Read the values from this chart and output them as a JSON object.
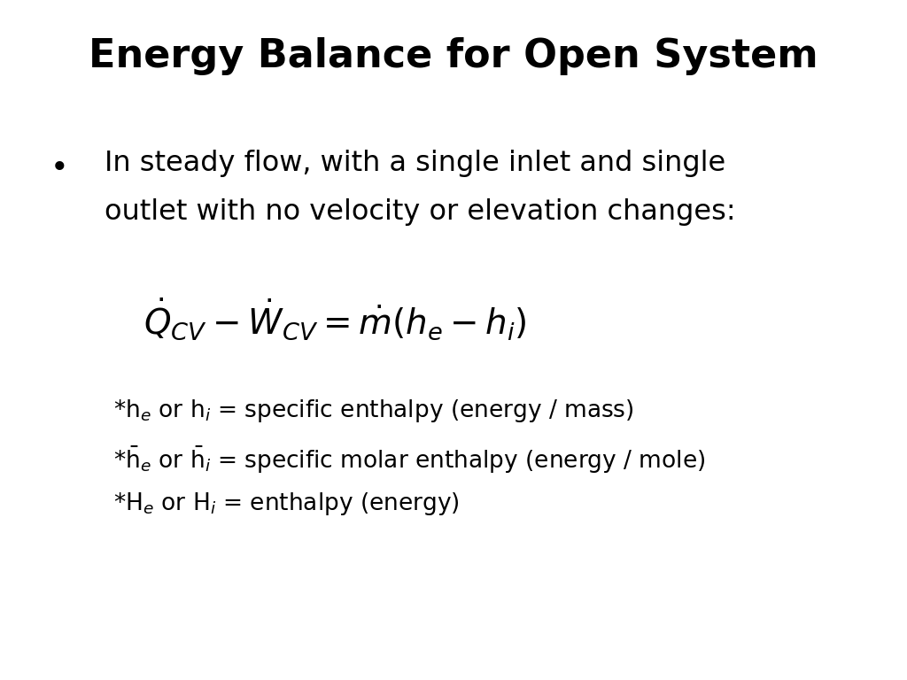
{
  "title": "Energy Balance for Open System",
  "title_fontsize": 32,
  "title_fontweight": "bold",
  "background_color": "#ffffff",
  "text_color": "#000000",
  "bullet_text_line1": "In steady flow, with a single inlet and single",
  "bullet_text_line2": "outlet with no velocity or elevation changes:",
  "bullet_fontsize": 23,
  "equation": "$\\dot{Q}_{CV} - \\dot{W}_{CV} = \\dot{m}(h_e - h_i)$",
  "equation_fontsize": 28,
  "note_fontsize": 19,
  "figsize": [
    10.24,
    7.68
  ],
  "dpi": 100
}
